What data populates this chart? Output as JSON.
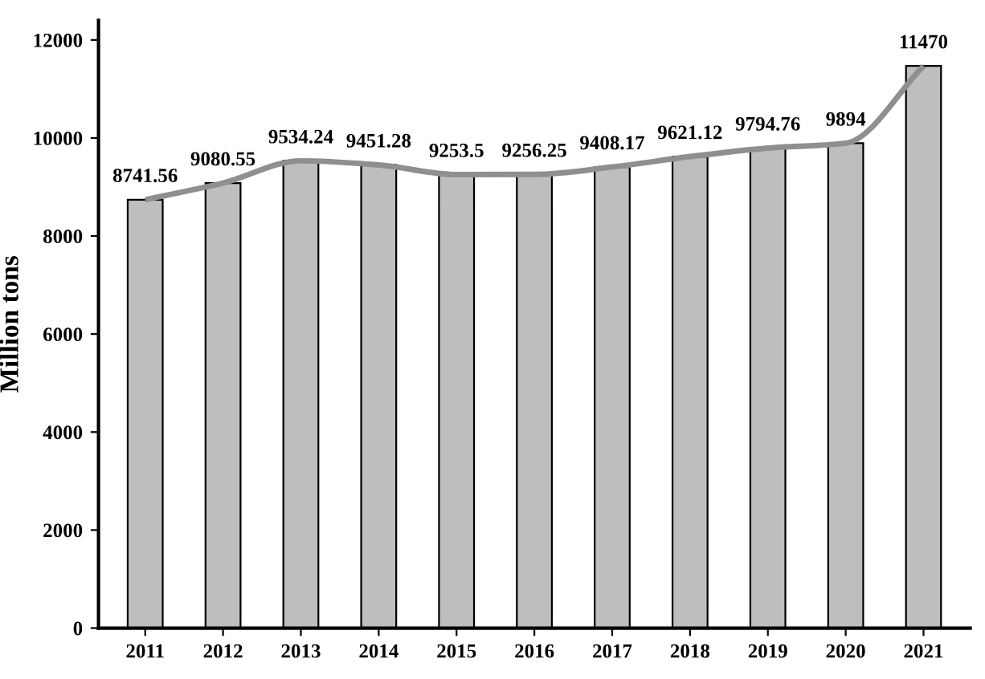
{
  "chart_data": {
    "type": "bar",
    "ylabel": "Million tons",
    "categories": [
      "2011",
      "2012",
      "2013",
      "2014",
      "2015",
      "2016",
      "2017",
      "2018",
      "2019",
      "2020",
      "2021"
    ],
    "series": [
      {
        "color": "#bebebe",
        "values": [
          8741.56,
          9080.55,
          9534.24,
          9451.28,
          9253.5,
          9256.25,
          9408.17,
          9621.12,
          9794.76,
          9894,
          11470
        ],
        "value_labels": [
          "8741.56",
          "9080.55",
          "9534.24",
          "9451.28",
          "9253.5",
          "9256.25",
          "9408.17",
          "9621.12",
          "9794.76",
          "9894",
          "11470"
        ]
      },
      {
        "type": "line",
        "color": "#8f8f8f",
        "values": [
          8741.56,
          9080.55,
          9534.24,
          9451.28,
          9253.5,
          9256.25,
          9408.17,
          9621.12,
          9794.76,
          9894,
          11470
        ]
      }
    ],
    "ylim": [
      0,
      12400
    ],
    "yticks": [
      0,
      2000,
      4000,
      6000,
      8000,
      10000,
      12000
    ],
    "grid": false,
    "legend": false,
    "marker": "none",
    "line_style": "solid"
  }
}
